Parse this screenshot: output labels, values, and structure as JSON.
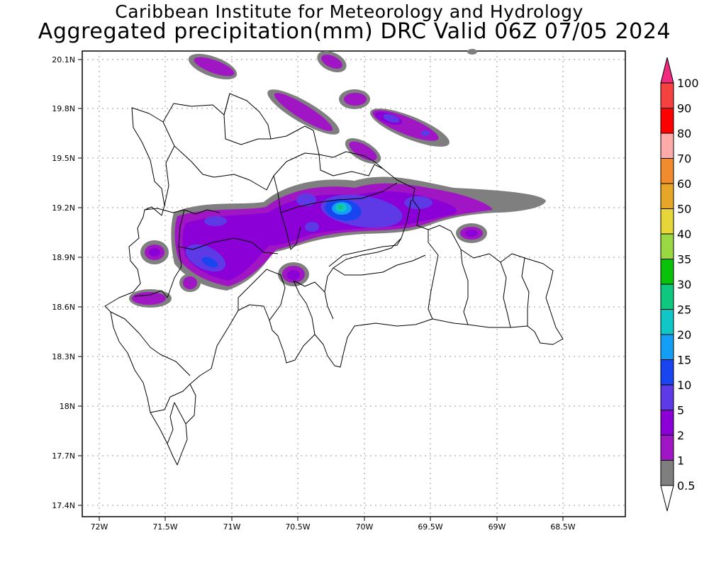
{
  "header": {
    "institution": "Caribbean Institute for Meteorology and Hydrology",
    "product": "Aggregated precipitation(mm) DRC Valid 06Z 07/05 2024"
  },
  "axes": {
    "lon_ticks": [
      "72W",
      "71.5W",
      "71W",
      "70.5W",
      "70W",
      "69.5W",
      "69W",
      "68.5W"
    ],
    "lat_ticks": [
      "20.1N",
      "19.8N",
      "19.5N",
      "19.2N",
      "18.9N",
      "18.6N",
      "18.3N",
      "18N",
      "17.7N",
      "17.4N"
    ]
  },
  "colorbar": {
    "labels": [
      "100",
      "90",
      "80",
      "70",
      "60",
      "50",
      "40",
      "35",
      "30",
      "25",
      "20",
      "15",
      "10",
      "5",
      "2",
      "1",
      "0.5"
    ],
    "colors": [
      "#f02a7e",
      "#f54240",
      "#ff0000",
      "#ffaaaa",
      "#f28a2e",
      "#e6a628",
      "#e7d63a",
      "#9ad843",
      "#09c209",
      "#10c780",
      "#10c6c6",
      "#139ff5",
      "#1845f0",
      "#5d3ae6",
      "#8a00d6",
      "#a116c4",
      "#7f7f7f",
      "#ffffff"
    ]
  },
  "map": {
    "region": "Dominican Republic",
    "lon_range": [
      -72.05,
      -68.0
    ],
    "lat_range": [
      17.35,
      20.15
    ],
    "grid": true
  }
}
